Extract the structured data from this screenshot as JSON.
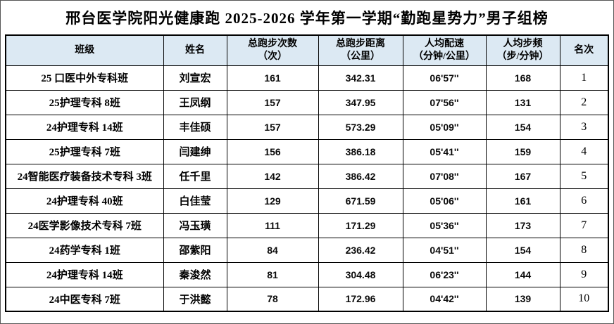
{
  "title": "邢台医学院阳光健康跑 2025-2026 学年第一学期“勤跑星势力”男子组榜",
  "colors": {
    "header_bg": "#dce9f3",
    "border": "#000000",
    "text": "#000000"
  },
  "table": {
    "headers": [
      {
        "lines": [
          "班级"
        ]
      },
      {
        "lines": [
          "姓名"
        ]
      },
      {
        "lines": [
          "总跑步次数",
          "（次）"
        ]
      },
      {
        "lines": [
          "总跑步距离",
          "（公里）"
        ]
      },
      {
        "lines": [
          "人均配速",
          "（分钟/公里）"
        ]
      },
      {
        "lines": [
          "人均步频",
          "（步/分钟）"
        ]
      },
      {
        "lines": [
          "名次"
        ]
      }
    ],
    "rows": [
      {
        "class": "25 口医中外专科班",
        "name": "刘宣宏",
        "steps": "161",
        "distance": "342.31",
        "pace": "06'57''",
        "cadence": "168",
        "rank": "1"
      },
      {
        "class": "25护理专科 8班",
        "name": "王凤纲",
        "steps": "157",
        "distance": "347.95",
        "pace": "07'56''",
        "cadence": "131",
        "rank": "2"
      },
      {
        "class": "24护理专科 14班",
        "name": "丰佳硕",
        "steps": "157",
        "distance": "573.29",
        "pace": "05'09''",
        "cadence": "154",
        "rank": "3"
      },
      {
        "class": "25护理专科 7班",
        "name": "闫建绅",
        "steps": "156",
        "distance": "386.18",
        "pace": "05'41''",
        "cadence": "159",
        "rank": "4"
      },
      {
        "class": "24智能医疗装备技术专科 3班",
        "name": "任千里",
        "steps": "142",
        "distance": "386.42",
        "pace": "07'08''",
        "cadence": "167",
        "rank": "5"
      },
      {
        "class": "24护理专科 40班",
        "name": "白佳莹",
        "steps": "129",
        "distance": "671.59",
        "pace": "05'06''",
        "cadence": "161",
        "rank": "6"
      },
      {
        "class": "24医学影像技术专科 7班",
        "name": "冯玉璜",
        "steps": "111",
        "distance": "171.29",
        "pace": "05'36''",
        "cadence": "173",
        "rank": "7"
      },
      {
        "class": "24药学专科 1班",
        "name": "邵紫阳",
        "steps": "84",
        "distance": "236.42",
        "pace": "04'51''",
        "cadence": "154",
        "rank": "8"
      },
      {
        "class": "24护理专科 14班",
        "name": "秦浚然",
        "steps": "81",
        "distance": "304.48",
        "pace": "06'23''",
        "cadence": "144",
        "rank": "9"
      },
      {
        "class": "24中医专科 7班",
        "name": "于洪懿",
        "steps": "78",
        "distance": "172.96",
        "pace": "04'42''",
        "cadence": "139",
        "rank": "10"
      }
    ]
  }
}
